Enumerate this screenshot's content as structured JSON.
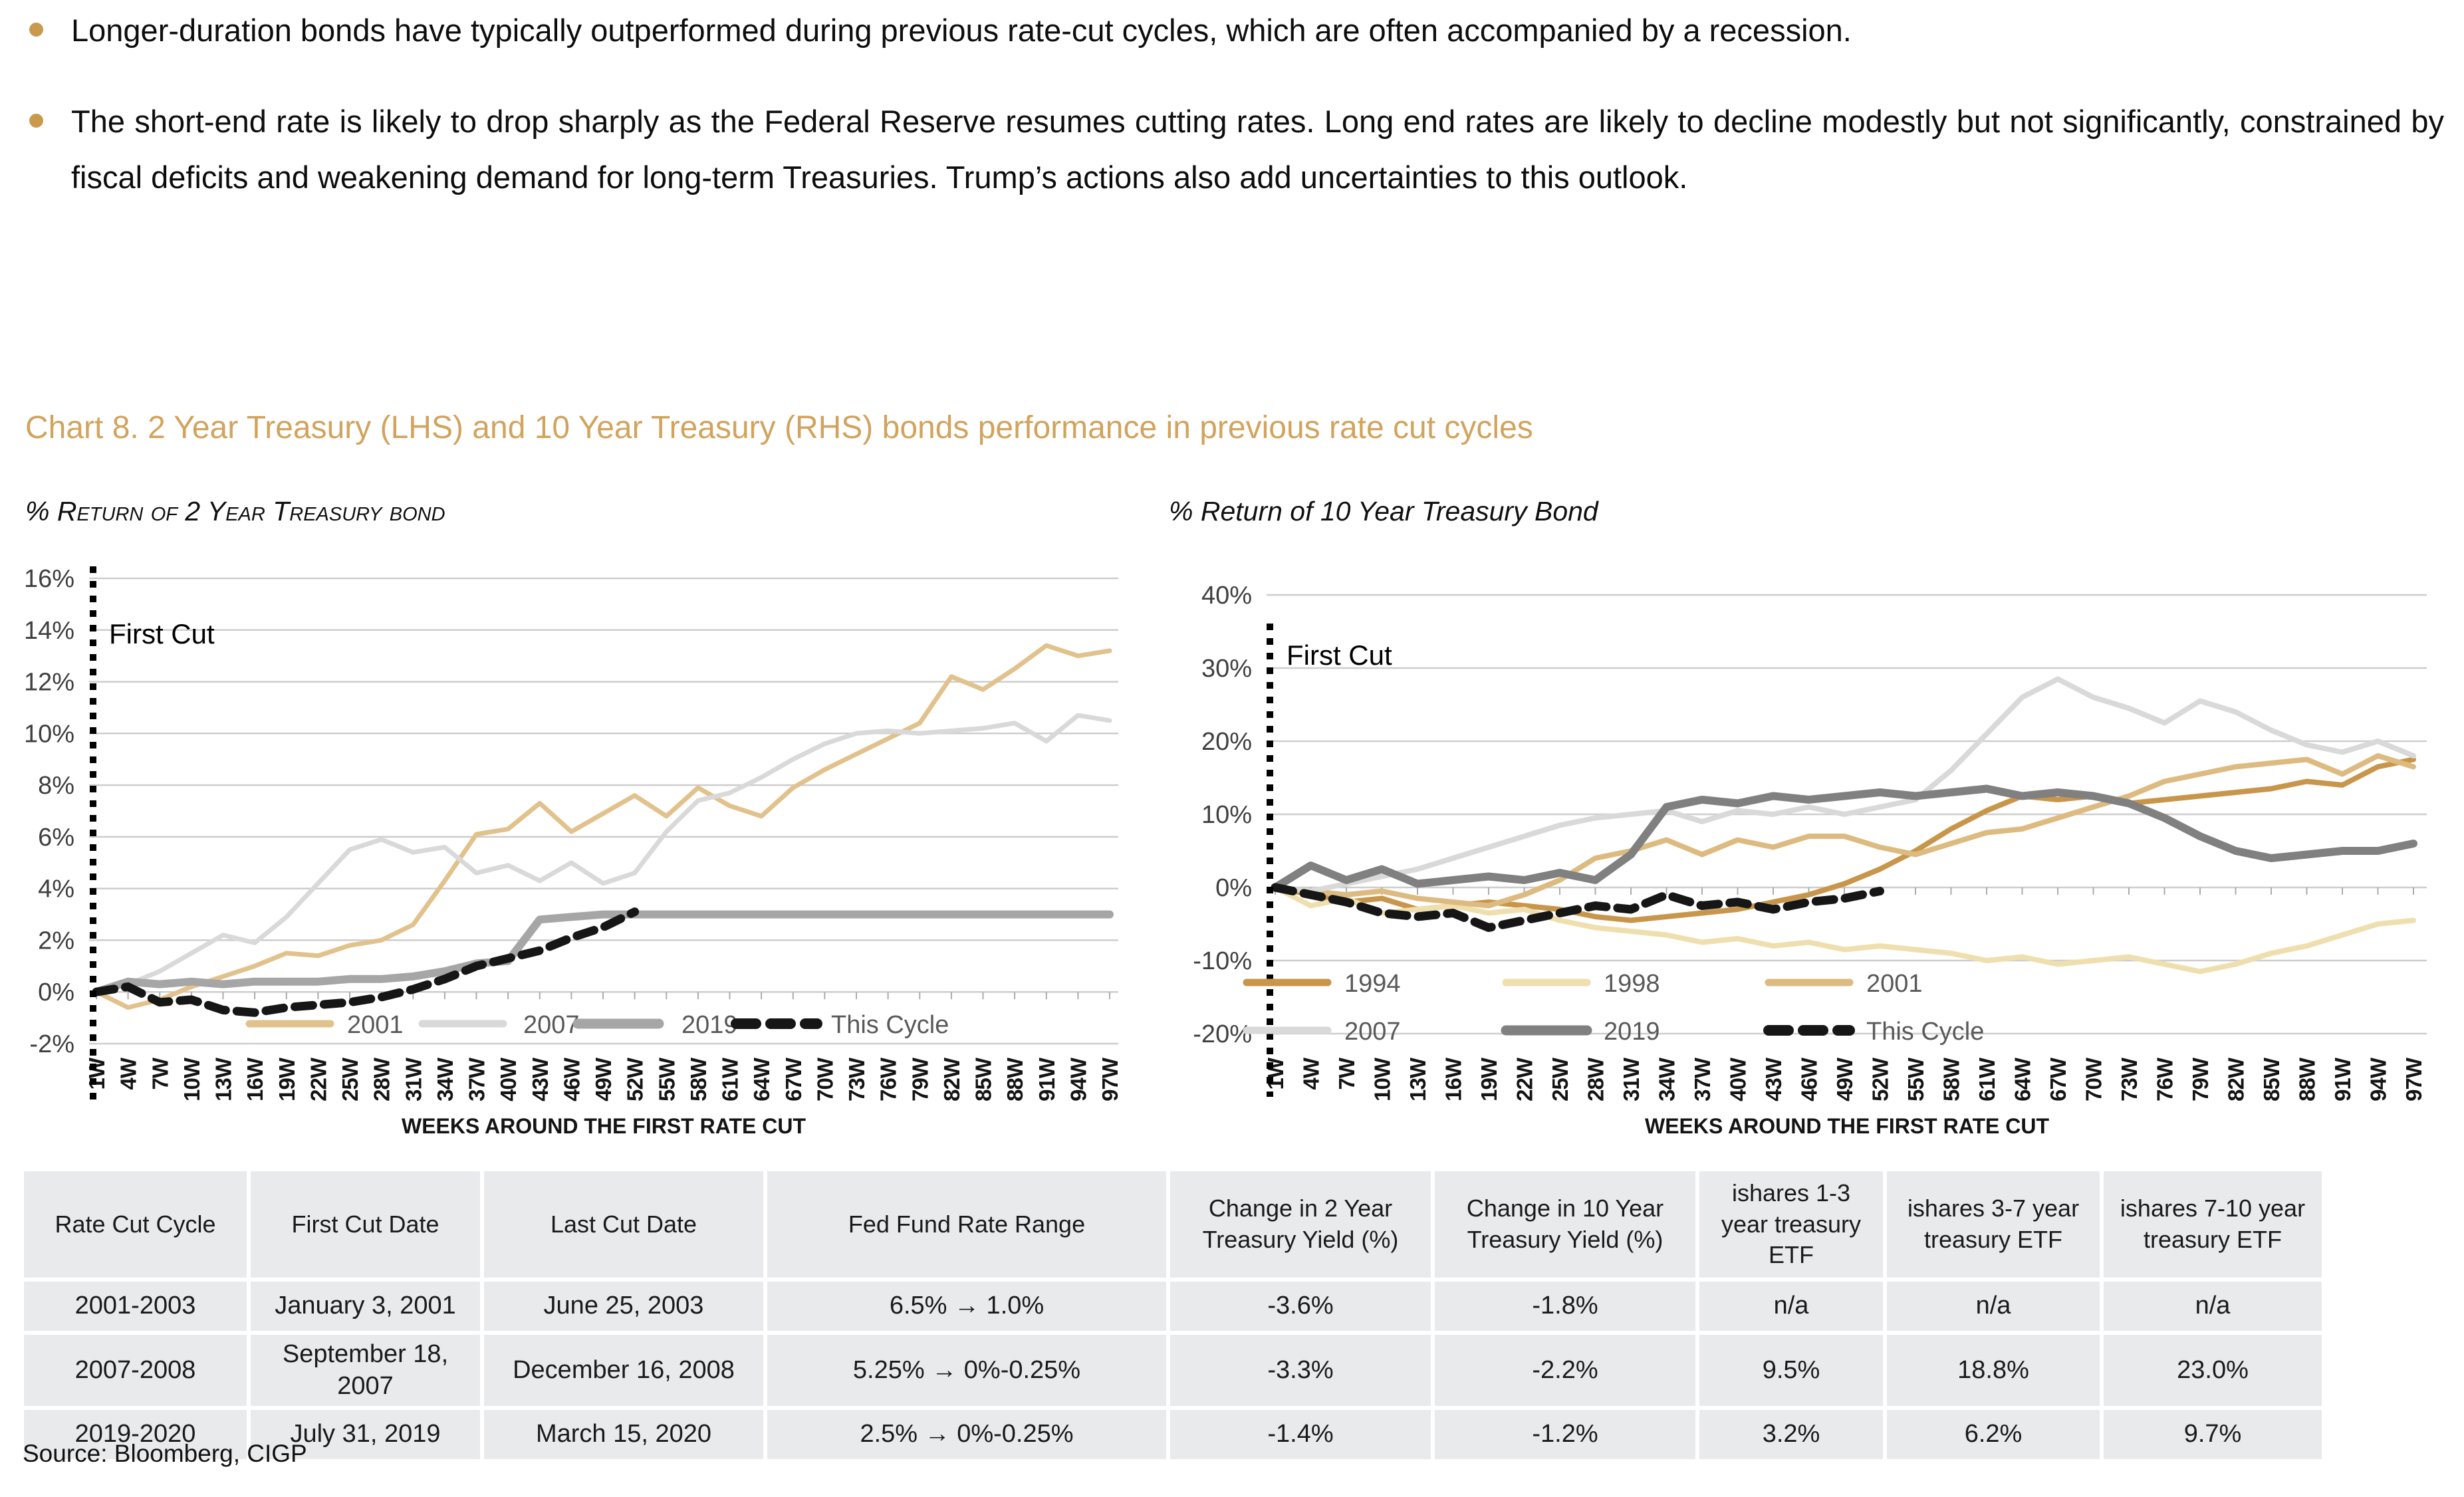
{
  "bullets": [
    "Longer-duration bonds have typically outperformed during previous rate-cut cycles, which are often accompanied by a recession.",
    "The short-end rate is likely to drop sharply as the Federal Reserve resumes cutting rates. Long end rates are likely to decline modestly but not significantly, constrained by fiscal deficits and weakening demand for long-term Treasuries. Trump’s actions also add uncertainties to this outlook."
  ],
  "chart_section": {
    "title": "Chart 8. 2 Year Treasury (LHS) and 10 Year Treasury (RHS) bonds performance in previous rate cut cycles",
    "left_subtitle": "% Return of 2 Year Treasury bond",
    "right_subtitle": "% Return of 10 Year Treasury Bond"
  },
  "chart_data": [
    {
      "type": "line",
      "title": "% Return of 2 Year Treasury bond",
      "xlabel": "WEEKS AROUND THE FIRST RATE CUT",
      "annotation": "First Cut",
      "grid": true,
      "legend_position": "inside-bottom",
      "ylim": [
        -2,
        16
      ],
      "ytick_values": [
        16,
        14,
        12,
        10,
        8,
        6,
        4,
        2,
        0,
        -2
      ],
      "ytick_labels": [
        "16%",
        "14%",
        "12%",
        "10%",
        "8%",
        "6%",
        "4%",
        "2%",
        "0%",
        "-2%"
      ],
      "x_tick_labels": [
        "1W",
        "4W",
        "7W",
        "10W",
        "13W",
        "16W",
        "19W",
        "22W",
        "25W",
        "28W",
        "31W",
        "34W",
        "37W",
        "40W",
        "43W",
        "46W",
        "49W",
        "52W",
        "55W",
        "58W",
        "61W",
        "64W",
        "67W",
        "70W",
        "73W",
        "76W",
        "79W",
        "82W",
        "85W",
        "88W",
        "91W",
        "94W",
        "97W"
      ],
      "series": [
        {
          "name": "2001",
          "color": "#E2C28C",
          "width": 7,
          "dash": null,
          "values": [
            0,
            -0.6,
            -0.3,
            0.2,
            0.6,
            1.0,
            1.5,
            1.4,
            1.8,
            2.0,
            2.6,
            4.3,
            6.1,
            6.3,
            7.3,
            6.2,
            6.9,
            7.6,
            6.8,
            7.9,
            7.2,
            6.8,
            7.9,
            8.6,
            9.2,
            9.8,
            10.4,
            12.2,
            11.7,
            12.5,
            13.4,
            13.0,
            13.2
          ]
        },
        {
          "name": "2007",
          "color": "#D9D9D9",
          "width": 7,
          "dash": null,
          "values": [
            0,
            0.3,
            0.8,
            1.5,
            2.2,
            1.9,
            2.9,
            4.2,
            5.5,
            5.9,
            5.4,
            5.6,
            4.6,
            4.9,
            4.3,
            5.0,
            4.2,
            4.6,
            6.2,
            7.4,
            7.7,
            8.3,
            9.0,
            9.6,
            10.0,
            10.1,
            10.0,
            10.1,
            10.2,
            10.4,
            9.7,
            10.7,
            10.5
          ]
        },
        {
          "name": "2019",
          "color": "#A6A6A6",
          "width": 12,
          "dash": null,
          "values": [
            0,
            0.4,
            0.3,
            0.4,
            0.3,
            0.4,
            0.4,
            0.4,
            0.5,
            0.5,
            0.6,
            0.8,
            1.1,
            1.2,
            2.8,
            2.9,
            3.0,
            3.0,
            3.0,
            3.0,
            3.0,
            3.0,
            3.0,
            3.0,
            3.0,
            3.0,
            3.0,
            3.0,
            3.0,
            3.0,
            3.0,
            3.0,
            3.0
          ]
        },
        {
          "name": "This Cycle",
          "color": "#161616",
          "width": 13,
          "dash": "27 17",
          "values": [
            0,
            0.2,
            -0.4,
            -0.3,
            -0.7,
            -0.8,
            -0.6,
            -0.5,
            -0.4,
            -0.2,
            0.1,
            0.5,
            1.0,
            1.3,
            1.6,
            2.1,
            2.5,
            3.1,
            null,
            null,
            null,
            null,
            null,
            null,
            null,
            null,
            null,
            null,
            null,
            null,
            null,
            null,
            null
          ]
        }
      ]
    },
    {
      "type": "line",
      "title": "% Return of 10 Year Treasury Bond",
      "xlabel": "WEEKS AROUND THE FIRST RATE CUT",
      "annotation": "First Cut",
      "grid": true,
      "legend_position": "inside-bottom",
      "ylim": [
        -20,
        40
      ],
      "ytick_values": [
        40,
        30,
        20,
        10,
        0,
        -10,
        -20
      ],
      "ytick_labels": [
        "40%",
        "30%",
        "20%",
        "10%",
        "0%",
        "-10%",
        "-20%"
      ],
      "x_tick_labels": [
        "1W",
        "4W",
        "7W",
        "10W",
        "13W",
        "16W",
        "19W",
        "22W",
        "25W",
        "28W",
        "31W",
        "34W",
        "37W",
        "40W",
        "43W",
        "46W",
        "49W",
        "52W",
        "55W",
        "58W",
        "61W",
        "64W",
        "67W",
        "70W",
        "73W",
        "76W",
        "79W",
        "82W",
        "85W",
        "88W",
        "91W",
        "94W",
        "97W"
      ],
      "series": [
        {
          "name": "1994",
          "color": "#C8964A",
          "width": 8,
          "dash": null,
          "values": [
            0,
            -1,
            -2,
            -1.5,
            -3,
            -2.5,
            -2,
            -2.5,
            -3,
            -4,
            -4.5,
            -4,
            -3.5,
            -3,
            -2,
            -1,
            0.5,
            2.5,
            5,
            8,
            10.5,
            12.5,
            12,
            12.5,
            11.5,
            12,
            12.5,
            13,
            13.5,
            14.5,
            14,
            16.5,
            17.5
          ]
        },
        {
          "name": "1998",
          "color": "#EFDFAE",
          "width": 8,
          "dash": null,
          "values": [
            0,
            -2.5,
            -1.5,
            -3.5,
            -3,
            -2.5,
            -3.5,
            -3,
            -4.5,
            -5.5,
            -6,
            -6.5,
            -7.5,
            -7,
            -8,
            -7.5,
            -8.5,
            -8,
            -8.5,
            -9,
            -10,
            -9.5,
            -10.5,
            -10,
            -9.5,
            -10.5,
            -11.5,
            -10.5,
            -9,
            -8,
            -6.5,
            -5,
            -4.5
          ]
        },
        {
          "name": "2001",
          "color": "#DDBB80",
          "width": 8,
          "dash": null,
          "values": [
            0,
            -0.5,
            -1,
            -0.5,
            -1.5,
            -2,
            -2.5,
            -1,
            1,
            4,
            5,
            6.5,
            4.5,
            6.5,
            5.5,
            7,
            7,
            5.5,
            4.5,
            6,
            7.5,
            8,
            9.5,
            11,
            12.5,
            14.5,
            15.5,
            16.5,
            17,
            17.5,
            15.5,
            18,
            16.5
          ]
        },
        {
          "name": "2007",
          "color": "#D9D9D9",
          "width": 8,
          "dash": null,
          "values": [
            0,
            -0.5,
            0.5,
            1.5,
            2.5,
            4,
            5.5,
            7,
            8.5,
            9.5,
            10,
            10.5,
            9,
            10.5,
            10,
            11,
            10,
            11,
            12,
            16,
            21,
            26,
            28.5,
            26,
            24.5,
            22.5,
            25.5,
            24,
            21.5,
            19.5,
            18.5,
            20,
            18
          ]
        },
        {
          "name": "2019",
          "color": "#808080",
          "width": 12,
          "dash": null,
          "values": [
            0,
            3,
            1,
            2.5,
            0.5,
            1,
            1.5,
            1,
            2,
            1,
            4.5,
            11,
            12,
            11.5,
            12.5,
            12,
            12.5,
            13,
            12.5,
            13,
            13.5,
            12.5,
            13,
            12.5,
            11.5,
            9.5,
            7,
            5,
            4,
            4.5,
            5,
            5,
            6
          ]
        },
        {
          "name": "This Cycle",
          "color": "#161616",
          "width": 13,
          "dash": "27 17",
          "values": [
            0,
            -1,
            -2,
            -3.5,
            -4,
            -3.5,
            -5.5,
            -4.5,
            -3.5,
            -2.5,
            -3,
            -1,
            -2.5,
            -2,
            -3,
            -2,
            -1.5,
            -0.5,
            null,
            null,
            null,
            null,
            null,
            null,
            null,
            null,
            null,
            null,
            null,
            null,
            null,
            null,
            null
          ]
        }
      ]
    }
  ],
  "table": {
    "headers": [
      "Rate Cut Cycle",
      "First Cut Date",
      "Last Cut Date",
      "Fed Fund Rate Range",
      "Change in 2 Year Treasury Yield (%)",
      "Change in 10 Year Treasury Yield (%)",
      "ishares 1-3 year treasury ETF",
      "ishares 3-7 year treasury ETF",
      "ishares 7-10 year treasury ETF"
    ],
    "rows": [
      [
        "2001-2003",
        "January 3, 2001",
        "June 25, 2003",
        "6.5% → 1.0%",
        "-3.6%",
        "-1.8%",
        "n/a",
        "n/a",
        "n/a"
      ],
      [
        "2007-2008",
        "September 18, 2007",
        "December 16, 2008",
        "5.25% → 0%-0.25%",
        "-3.3%",
        "-2.2%",
        "9.5%",
        "18.8%",
        "23.0%"
      ],
      [
        "2019-2020",
        "July 31, 2019",
        "March 15, 2020",
        "2.5% → 0%-0.25%",
        "-1.4%",
        "-1.2%",
        "3.2%",
        "6.2%",
        "9.7%"
      ]
    ]
  },
  "source": "Source: Bloomberg, CIGP",
  "colors": {
    "accent_gold": "#D2A35C",
    "bullet_dot": "#C9994C",
    "table_cell_bg": "#E8EAEC",
    "gridline": "#CDCDCD",
    "first_cut_line": "#000000"
  }
}
